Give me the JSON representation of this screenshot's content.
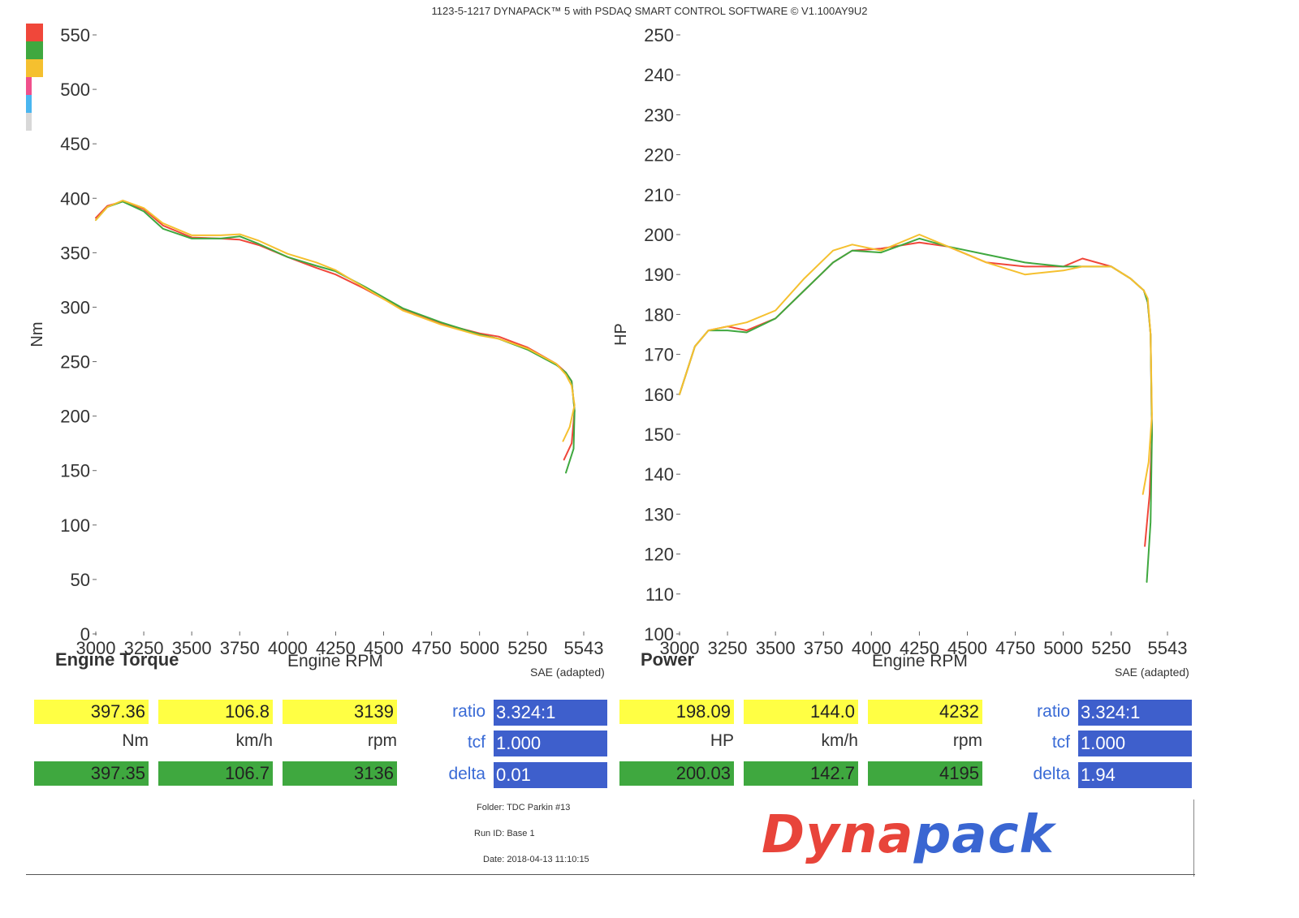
{
  "header": "1123-5-1217 DYNAPACK™ 5 with PSDAQ SMART CONTROL SOFTWARE © V1.100AY9U2",
  "colors": {
    "run1": "#f0473a",
    "run2": "#3fa83f",
    "run3": "#f5c02f",
    "swatch_pink": "#f0508c",
    "swatch_blue": "#4ab6f0",
    "swatch_gray": "#d8d8d8",
    "param_blue": "#3e5fcc",
    "cell_yellow": "#ffff44",
    "cell_green": "#3fa83f"
  },
  "chart_data": [
    {
      "type": "line",
      "title": "Engine Torque",
      "xlabel": "Engine RPM",
      "ylabel": "Nm",
      "xlim": [
        3000,
        5543
      ],
      "ylim": [
        0,
        550
      ],
      "xticks": [
        "3000",
        "3250",
        "3500",
        "3750",
        "4000",
        "4250",
        "4500",
        "4750",
        "5000",
        "5250",
        "5543"
      ],
      "yticks": [
        "0",
        "50",
        "100",
        "150",
        "200",
        "250",
        "300",
        "350",
        "400",
        "450",
        "500",
        "550"
      ],
      "grid": false,
      "note": "SAE (adapted)",
      "series": [
        {
          "color": "#f0473a",
          "x": [
            3000,
            3060,
            3140,
            3250,
            3350,
            3500,
            3650,
            3750,
            3850,
            4000,
            4150,
            4250,
            4400,
            4600,
            4800,
            5000,
            5100,
            5250,
            5400,
            5450,
            5480,
            5495,
            5480,
            5440
          ],
          "y": [
            382,
            393,
            397,
            390,
            375,
            364,
            363,
            362,
            357,
            346,
            336,
            330,
            317,
            298,
            285,
            276,
            273,
            263,
            248,
            240,
            232,
            205,
            175,
            160
          ]
        },
        {
          "color": "#3fa83f",
          "x": [
            3000,
            3060,
            3140,
            3250,
            3350,
            3500,
            3650,
            3750,
            3850,
            4000,
            4150,
            4250,
            4400,
            4600,
            4800,
            5000,
            5100,
            5250,
            5400,
            5450,
            5480,
            5495,
            5490,
            5450
          ],
          "y": [
            380,
            392,
            397,
            388,
            372,
            363,
            363,
            365,
            358,
            346,
            338,
            333,
            319,
            299,
            286,
            275,
            271,
            261,
            247,
            240,
            232,
            205,
            170,
            148
          ]
        },
        {
          "color": "#f5c02f",
          "x": [
            3000,
            3060,
            3140,
            3250,
            3350,
            3500,
            3650,
            3750,
            3850,
            4000,
            4150,
            4250,
            4400,
            4600,
            4800,
            5000,
            5100,
            5250,
            5400,
            5450,
            5480,
            5495,
            5470,
            5435
          ],
          "y": [
            380,
            392,
            398,
            391,
            377,
            366,
            366,
            367,
            361,
            349,
            341,
            334,
            318,
            297,
            284,
            274,
            271,
            262,
            248,
            238,
            228,
            210,
            190,
            177
          ]
        }
      ]
    },
    {
      "type": "line",
      "title": "Power",
      "xlabel": "Engine RPM",
      "ylabel": "HP",
      "xlim": [
        3000,
        5543
      ],
      "ylim": [
        100,
        250
      ],
      "xticks": [
        "3000",
        "3250",
        "3500",
        "3750",
        "4000",
        "4250",
        "4500",
        "4750",
        "5000",
        "5250",
        "5543"
      ],
      "yticks": [
        "100",
        "110",
        "120",
        "130",
        "140",
        "150",
        "160",
        "170",
        "180",
        "190",
        "200",
        "210",
        "220",
        "230",
        "240",
        "250"
      ],
      "grid": false,
      "note": "SAE (adapted)",
      "series": [
        {
          "color": "#f0473a",
          "x": [
            3000,
            3080,
            3150,
            3250,
            3350,
            3500,
            3650,
            3800,
            3900,
            4050,
            4250,
            4400,
            4600,
            4800,
            5000,
            5100,
            5250,
            5350,
            5420,
            5440,
            5455,
            5462,
            5450,
            5425
          ],
          "y": [
            160,
            172,
            176,
            177,
            176,
            179,
            186,
            193,
            196,
            196.5,
            198,
            197,
            193,
            192,
            192,
            194,
            192,
            189,
            186,
            183,
            175,
            150,
            135,
            122
          ]
        },
        {
          "color": "#3fa83f",
          "x": [
            3000,
            3080,
            3150,
            3250,
            3350,
            3500,
            3650,
            3800,
            3900,
            4050,
            4250,
            4400,
            4600,
            4800,
            5000,
            5100,
            5250,
            5350,
            5420,
            5440,
            5455,
            5462,
            5455,
            5435
          ],
          "y": [
            160,
            172,
            176,
            176,
            175.5,
            179,
            186,
            193,
            196,
            195.5,
            199,
            197,
            195,
            193,
            192,
            192,
            192,
            189,
            186,
            183,
            175,
            150,
            128,
            113
          ]
        },
        {
          "color": "#f5c02f",
          "x": [
            3000,
            3080,
            3150,
            3250,
            3350,
            3500,
            3650,
            3800,
            3900,
            4050,
            4250,
            4400,
            4600,
            4800,
            5000,
            5100,
            5250,
            5350,
            5420,
            5440,
            5455,
            5462,
            5445,
            5415
          ],
          "y": [
            160,
            172,
            176,
            177,
            178,
            181,
            189,
            196,
            197.5,
            196,
            200,
            197,
            193,
            190,
            191,
            192,
            192,
            189,
            186,
            184,
            175,
            155,
            143,
            135
          ]
        }
      ]
    }
  ],
  "torque_panel": {
    "title": "Engine Torque",
    "rpm_label": "Engine RPM",
    "sae": "SAE (adapted)",
    "row_yellow": [
      "397.36",
      "106.8",
      "3139"
    ],
    "units": [
      "Nm",
      "km/h",
      "rpm"
    ],
    "row_green": [
      "397.35",
      "106.7",
      "3136"
    ],
    "params": [
      {
        "label": "ratio",
        "value": "3.324:1"
      },
      {
        "label": "tcf",
        "value": "1.000"
      },
      {
        "label": "delta",
        "value": "0.01"
      }
    ]
  },
  "power_panel": {
    "title": "Power",
    "rpm_label": "Engine RPM",
    "sae": "SAE (adapted)",
    "row_yellow": [
      "198.09",
      "144.0",
      "4232"
    ],
    "units": [
      "HP",
      "km/h",
      "rpm"
    ],
    "row_green": [
      "200.03",
      "142.7",
      "4195"
    ],
    "params": [
      {
        "label": "ratio",
        "value": "3.324:1"
      },
      {
        "label": "tcf",
        "value": "1.000"
      },
      {
        "label": "delta",
        "value": "1.94"
      }
    ]
  },
  "meta": {
    "folder": "Folder:  TDC Parkin #13",
    "run_id": "Run ID:  Base 1",
    "date": "Date:  2018-04-13 11:10:15"
  },
  "logo": {
    "part1": "Dyna",
    "part2": "pack"
  }
}
